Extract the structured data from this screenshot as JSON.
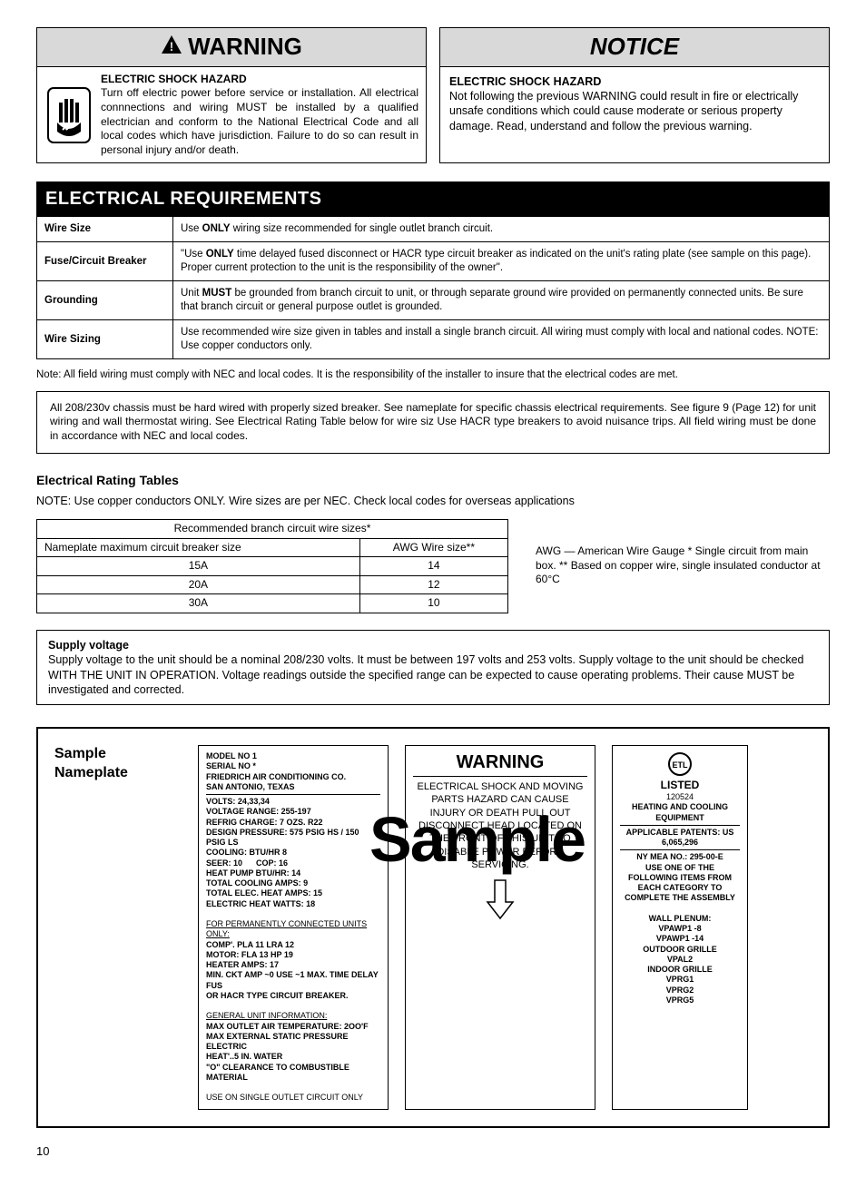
{
  "warning": {
    "header": "WARNING",
    "subhead": "ELECTRIC SHOCK HAZARD",
    "body": "Turn off electric power before service or installation. All electrical connnections and wiring MUST be installed by a qualified electrician and conform to the National Electrical Code and all local codes which have jurisdiction. Failure to do so can result in personal injury and/or death."
  },
  "notice": {
    "header": "NOTICE",
    "subhead": "ELECTRIC SHOCK HAZARD",
    "body": "Not following the previous WARNING could result in fire or electrically unsafe conditions which could cause moderate or serious property damage. Read, understand and follow the previous warning."
  },
  "section_title": "ELECTRICAL REQUIREMENTS",
  "req_rows": [
    {
      "label": "Wire Size",
      "text": "Use <b>ONLY</b> wiring size recommended for single outlet branch circuit."
    },
    {
      "label": "Fuse/Circuit Breaker",
      "text": "\"Use <b>ONLY</b> time delayed fused disconnect or HACR type circuit breaker as indicated on the unit's rating plate (see sample on this page). Proper current protection to the unit is the responsibility of the owner\"."
    },
    {
      "label": "Grounding",
      "text": "Unit <b>MUST</b> be grounded from branch circuit to unit, or through separate ground wire provided on permanently connected units. Be sure that branch circuit or general purpose outlet is grounded."
    },
    {
      "label": "Wire Sizing",
      "text": "Use recommended wire size given in tables and install a single branch circuit.  All wiring must comply with local and national codes.  NOTE: Use copper conductors only."
    }
  ],
  "note_line": "Note: All field wiring must comply with NEC and local codes. It is the responsibility of the installer to insure that the electrical codes are met.",
  "chassis_box": "All 208/230v chassis must be hard wired with properly sized breaker. See nameplate for specific chassis electrical requirements. See figure 9 (Page 12) for unit wiring and wall thermostat wiring. See Electrical Rating Table below for wire siz Use HACR type breakers to avoid nuisance trips. All field wiring must be done in accordance with NEC and local codes.",
  "rating_head": "Electrical Rating Tables",
  "rating_note": "NOTE:  Use copper conductors ONLY. Wire sizes are per NEC. Check local codes for overseas applications",
  "wire_table": {
    "caption": "Recommended branch circuit wire sizes*",
    "col1": "Nameplate maximum circuit breaker size",
    "col2": "AWG  Wire size**",
    "rows": [
      {
        "a": "15A",
        "b": "14"
      },
      {
        "a": "20A",
        "b": "12"
      },
      {
        "a": "30A",
        "b": "10"
      }
    ]
  },
  "wire_side_note": "AWG — American Wire Gauge * Single circuit from main box. ** Based on copper wire, single insulated conductor at 60°C",
  "supply": {
    "title": "Supply voltage",
    "body": "Supply voltage to the unit should be a nominal 208/230 volts. It must be between 197 volts and 253 volts. Supply voltage to the unit should be checked WITH THE UNIT IN OPERATION. Voltage readings outside the specified range can be expected to cause operating problems. Their cause MUST be investigated and corrected."
  },
  "nameplate": {
    "title": "Sample Nameplate",
    "col1_lines": [
      "<b>MODEL NO 1</b>",
      "<b>SERIAL NO *</b>",
      "<b>FRIEDRICH AIR CONDITIONING CO.</b>",
      "<b>SAN ANTONIO, TEXAS</b>",
      "<hr>",
      "<b>VOLTS: 24,33,34</b>",
      "<b>VOLTAGE RANGE: 255-197</b>",
      "<b>REFRIG CHARGE: 7 OZS. R22</b>",
      "<b>DESIGN PRESSURE: 575 PSIG HS / 150 PSIG LS</b>",
      "<b>COOLING: BTU/HR 8</b>",
      "<b>SEER: 10 &nbsp;&nbsp;&nbsp;&nbsp; COP: 16</b>",
      "<b>HEAT PUMP BTU/HR: 14</b>",
      "<b>TOTAL COOLING AMPS: 9</b>",
      "<b>TOTAL ELEC. HEAT AMPS: 15</b>",
      "<b>ELECTRIC HEAT WATTS: 18</b>",
      "&nbsp;",
      "<u>FOR PERMANENTLY CONNECTED UNITS ONLY:</u>",
      "<b>COMP'. PLA 11 LRA 12</b>",
      "<b>MOTOR: FLA 13 HP 19</b>",
      "<b>HEATER AMPS: 17</b>",
      "<b>MIN. CKT AMP ~0 USE ~1 MAX. TIME DELAY FUS</b>",
      "<b>OR HACR TYPE CIRCUIT BREAKER.</b>",
      "&nbsp;",
      "<u>GENERAL UNIT INFORMATION:</u>",
      "<b>MAX OUTLET AIR TEMPERATURE: 2OO'F</b>",
      "<b>MAX EXTERNAL STATIC PRESSURE ELECTRIC</b>",
      "<b>HEAT'..5 IN. WATER</b>",
      "<b>\"O\" CLEARANCE TO COMBUSTIBLE MATERIAL</b>",
      "&nbsp;",
      "USE ON SINGLE OUTLET CIRCUIT ONLY"
    ],
    "col2_title": "WARNING",
    "col2_text": "ELECTRICAL SHOCK AND MOVING PARTS HAZARD CAN CAUSE INJURY OR DEATH PULL OUT DISCONNECT HEAD LOCATED ON THE FRONT OF THIS UNIT TO DISABLE POWER BEFORE SERVICING.",
    "col3_lines": [
      "<span class='listed'>LISTED</span>",
      "120524",
      "<b>HEATING AND COOLING EQUIPMENT</b>",
      "<hr>",
      "<b>APPLICABLE PATENTS: US 6,065,296</b>",
      "<hr>",
      "<b>NY MEA NO.: 295-00-E</b>",
      "<b>USE ONE OF THE FOLLOWING ITEMS FROM EACH CATEGORY TO COMPLETE THE ASSEMBLY</b>",
      "&nbsp;",
      "<b>WALL PLENUM:</b>",
      "<b>VPAWP1 -8</b>",
      "<b>VPAWP1 -14</b>",
      "<b>OUTDOOR GRILLE</b>",
      "<b>VPAL2</b>",
      "<b>INDOOR GRILLE</b>",
      "<b>VPRG1</b>",
      "<b>VPRG2</b>",
      "<b>VPRG5</b>"
    ]
  },
  "page_number": "10"
}
